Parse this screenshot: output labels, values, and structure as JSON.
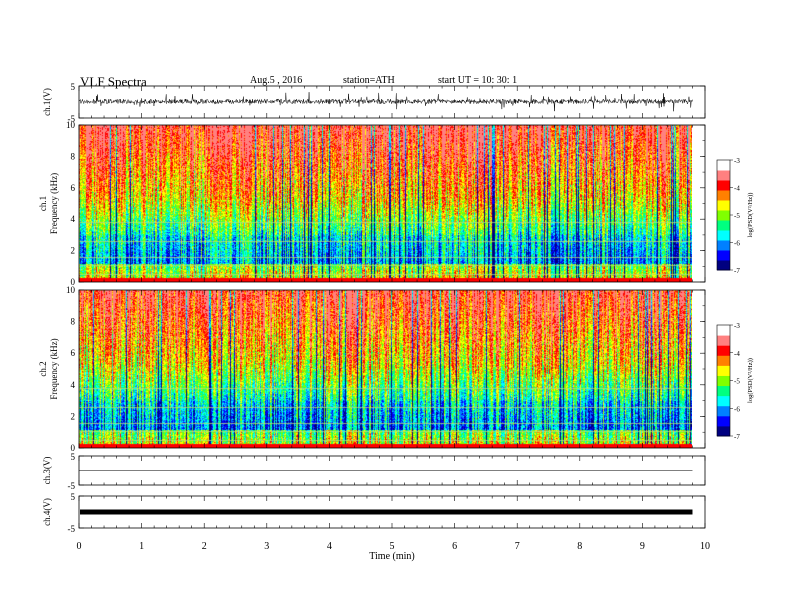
{
  "header": {
    "title": "VLF  Spectra",
    "date": "Aug.5   , 2016",
    "station": "station=ATH",
    "start_ut": "start  UT  =    10: 30: 1"
  },
  "chart_data": {
    "type": "heatmap",
    "xlabel": "Time  (min)",
    "xlim": [
      0,
      10
    ],
    "xticks": [
      0,
      1,
      2,
      3,
      4,
      5,
      6,
      7,
      8,
      9,
      10
    ],
    "data_end_min": 9.8,
    "panels": [
      {
        "id": "ch1-wave",
        "kind": "waveform",
        "ylabel": "ch.1(V)",
        "ylim": [
          -5,
          5
        ],
        "yticks": [
          5,
          -5
        ],
        "baseline": 0.2,
        "amplitude": 1.5
      },
      {
        "id": "ch1-spec",
        "kind": "spectrogram",
        "ylabel": "Frequency  (kHz)",
        "channel": "ch.1",
        "ylim": [
          0,
          10
        ],
        "yticks": [
          0,
          2,
          4,
          6,
          8,
          10
        ]
      },
      {
        "id": "ch2-spec",
        "kind": "spectrogram",
        "ylabel": "Frequency  (kHz)",
        "channel": "ch.2",
        "ylim": [
          0,
          10
        ],
        "yticks": [
          0,
          2,
          4,
          6,
          8,
          10
        ]
      },
      {
        "id": "ch3-wave",
        "kind": "waveform",
        "ylabel": "ch.3(V)",
        "ylim": [
          -5,
          5
        ],
        "yticks": [
          5,
          -5
        ],
        "baseline": 0.0,
        "amplitude": 0.0
      },
      {
        "id": "ch4-wave",
        "kind": "waveform",
        "ylabel": "ch.4(V)",
        "ylim": [
          -5,
          5
        ],
        "yticks": [
          5,
          -5
        ],
        "baseline": 0.0,
        "amplitude": 0.15
      }
    ],
    "colorbar": {
      "label": "log(PSD(V²/Hz))",
      "range": [
        -7,
        -3
      ],
      "ticks": [
        -3,
        -4,
        -5,
        -6,
        -7
      ],
      "colors": [
        "#000080",
        "#0000ff",
        "#0080ff",
        "#00ffff",
        "#00ff80",
        "#80ff00",
        "#ffff00",
        "#ff8000",
        "#ff0000",
        "#ff8080",
        "#ffffff"
      ]
    }
  }
}
